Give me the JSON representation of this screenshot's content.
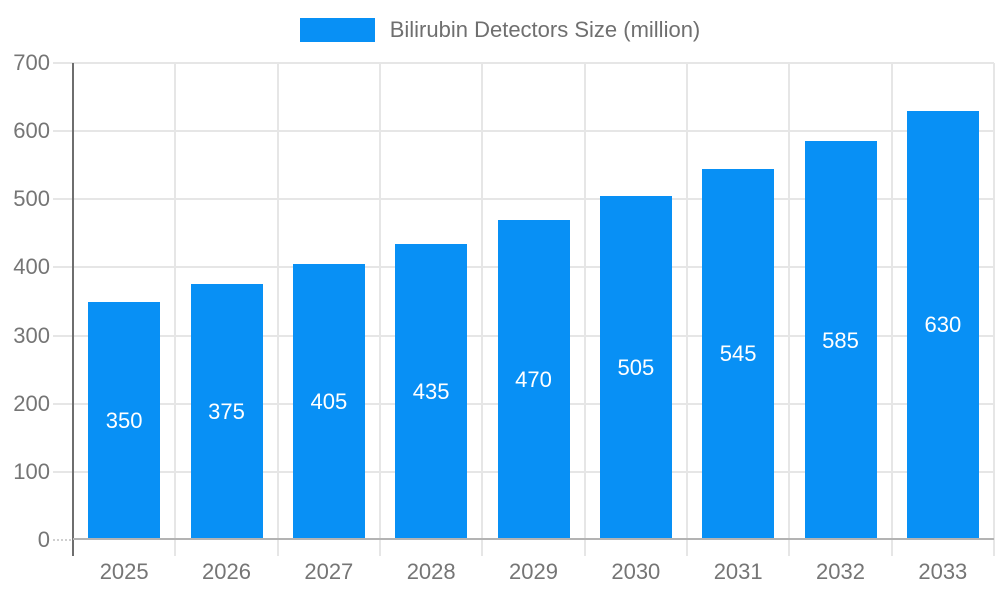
{
  "chart_data": {
    "type": "bar",
    "title": "",
    "legend": {
      "label": "Bilirubin Detectors Size (million)",
      "position": "top-center"
    },
    "categories": [
      "2025",
      "2026",
      "2027",
      "2028",
      "2029",
      "2030",
      "2031",
      "2032",
      "2033"
    ],
    "series": [
      {
        "name": "Bilirubin Detectors Size (million)",
        "values": [
          350,
          375,
          405,
          435,
          470,
          505,
          545,
          585,
          630
        ]
      }
    ],
    "value_labels_shown": true,
    "xlabel": "",
    "ylabel": "",
    "ylim": [
      0,
      700
    ],
    "y_ticks": [
      0,
      100,
      200,
      300,
      400,
      500,
      600,
      700
    ],
    "grid": true,
    "colors": {
      "bar": "#0890f5",
      "value_label": "#ffffff",
      "axis_text": "#757575",
      "legend_text": "#6f6f6f",
      "gridline": "#e6e6e6",
      "x_axis_line": "#b3b3b3",
      "y_axis_line": "#6e6e6e"
    }
  }
}
